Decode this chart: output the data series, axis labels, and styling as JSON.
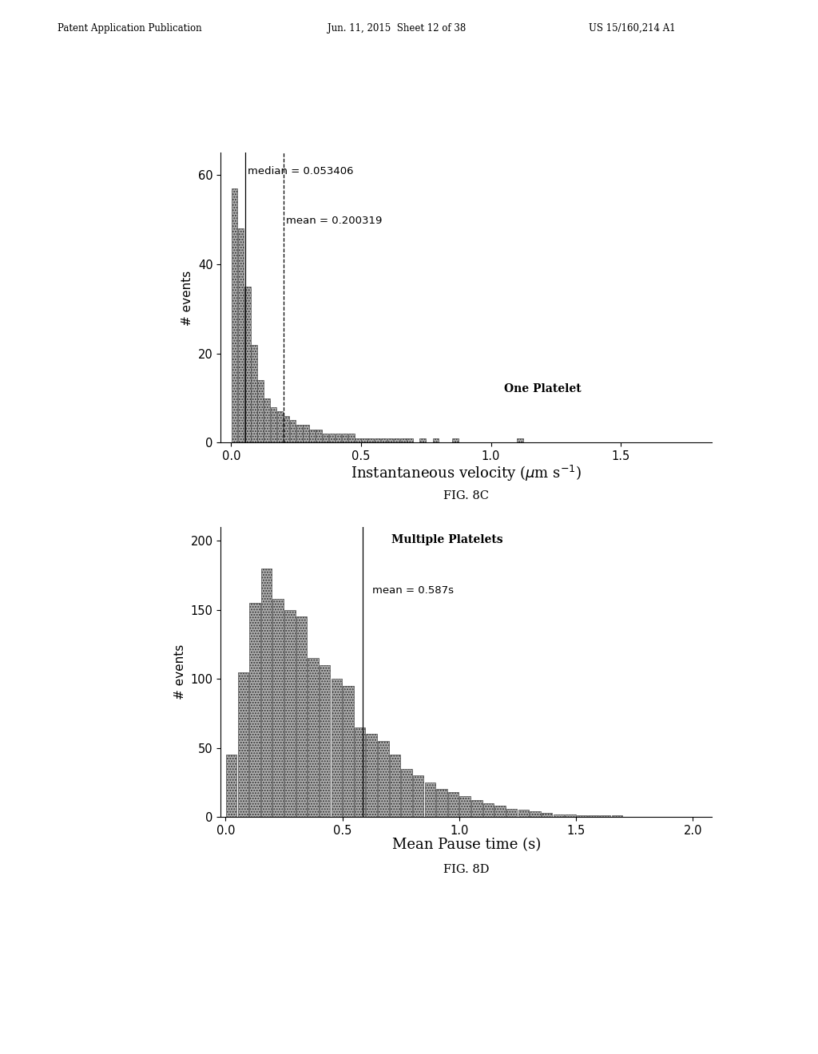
{
  "fig8c": {
    "title": "FIG. 8C",
    "xlabel": "Instantaneous velocity (μm s⁻¹)",
    "ylabel": "# events",
    "ylim": [
      0,
      65
    ],
    "xlim": [
      -0.04,
      1.85
    ],
    "yticks": [
      0,
      20,
      40,
      60
    ],
    "xticks": [
      0.0,
      0.5,
      1.0,
      1.5
    ],
    "median": 0.053406,
    "mean": 0.200319,
    "annotation_one_platelet": "One Platelet",
    "median_label": "median = 0.053406",
    "mean_label": "mean = 0.200319"
  },
  "fig8d": {
    "title": "FIG. 8D",
    "xlabel": "Mean Pause time (s)",
    "ylabel": "# events",
    "ylim": [
      0,
      210
    ],
    "xlim": [
      -0.02,
      2.08
    ],
    "yticks": [
      0,
      50,
      100,
      150,
      200
    ],
    "xticks": [
      0.0,
      0.5,
      1.0,
      1.5,
      2.0
    ],
    "mean": 0.587,
    "annotation_multiple_platelets": "Multiple Platelets",
    "mean_label": "mean = 0.587s"
  },
  "header_left": "Patent Application Publication",
  "header_center": "Jun. 11, 2015  Sheet 12 of 38",
  "header_right": "US 15/160,214 A1",
  "background_color": "#ffffff"
}
